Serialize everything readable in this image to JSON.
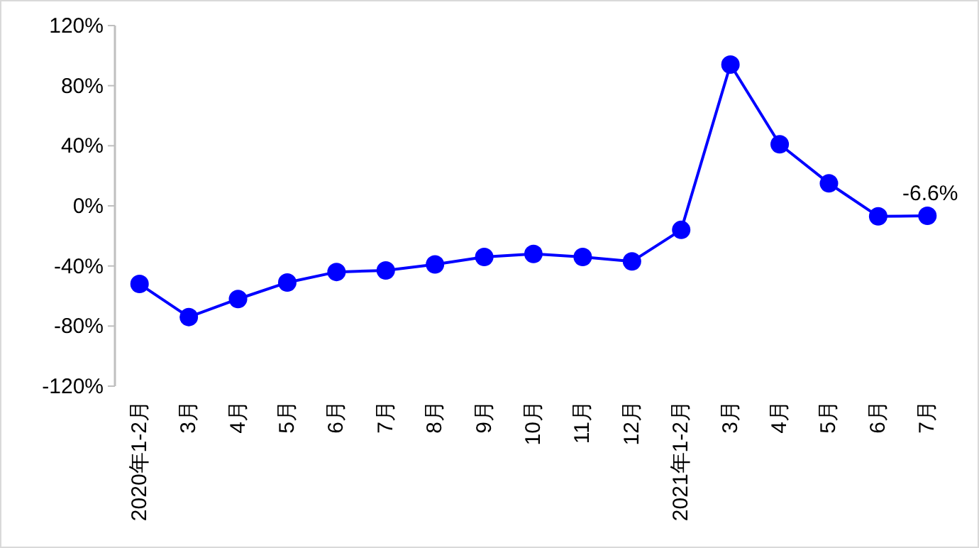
{
  "chart_data": {
    "type": "line",
    "categories": [
      "2020年1-2月",
      "3月",
      "4月",
      "5月",
      "6月",
      "7月",
      "8月",
      "9月",
      "10月",
      "11月",
      "12月",
      "2021年1-2月",
      "3月",
      "4月",
      "5月",
      "6月",
      "7月"
    ],
    "series": [
      {
        "color": "#0000ff",
        "values": [
          -52,
          -74,
          -62,
          -51,
          -44,
          -43,
          -39,
          -34,
          -32,
          -34,
          -37,
          -16,
          94,
          41,
          15,
          -7,
          -6.6
        ],
        "value_labels": [
          null,
          null,
          null,
          null,
          null,
          null,
          null,
          null,
          null,
          null,
          null,
          null,
          null,
          null,
          null,
          null,
          "-6.6%"
        ]
      }
    ],
    "ylim": [
      -120,
      120
    ],
    "yticks": [
      {
        "value": -120,
        "label": "-120%"
      },
      {
        "value": -80,
        "label": "-80%"
      },
      {
        "value": -40,
        "label": "-40%"
      },
      {
        "value": 0,
        "label": "0%"
      },
      {
        "value": 40,
        "label": "40%"
      },
      {
        "value": 80,
        "label": "80%"
      },
      {
        "value": 120,
        "label": "120%"
      }
    ],
    "marker": "circle",
    "line_style": "solid",
    "grid": false
  }
}
